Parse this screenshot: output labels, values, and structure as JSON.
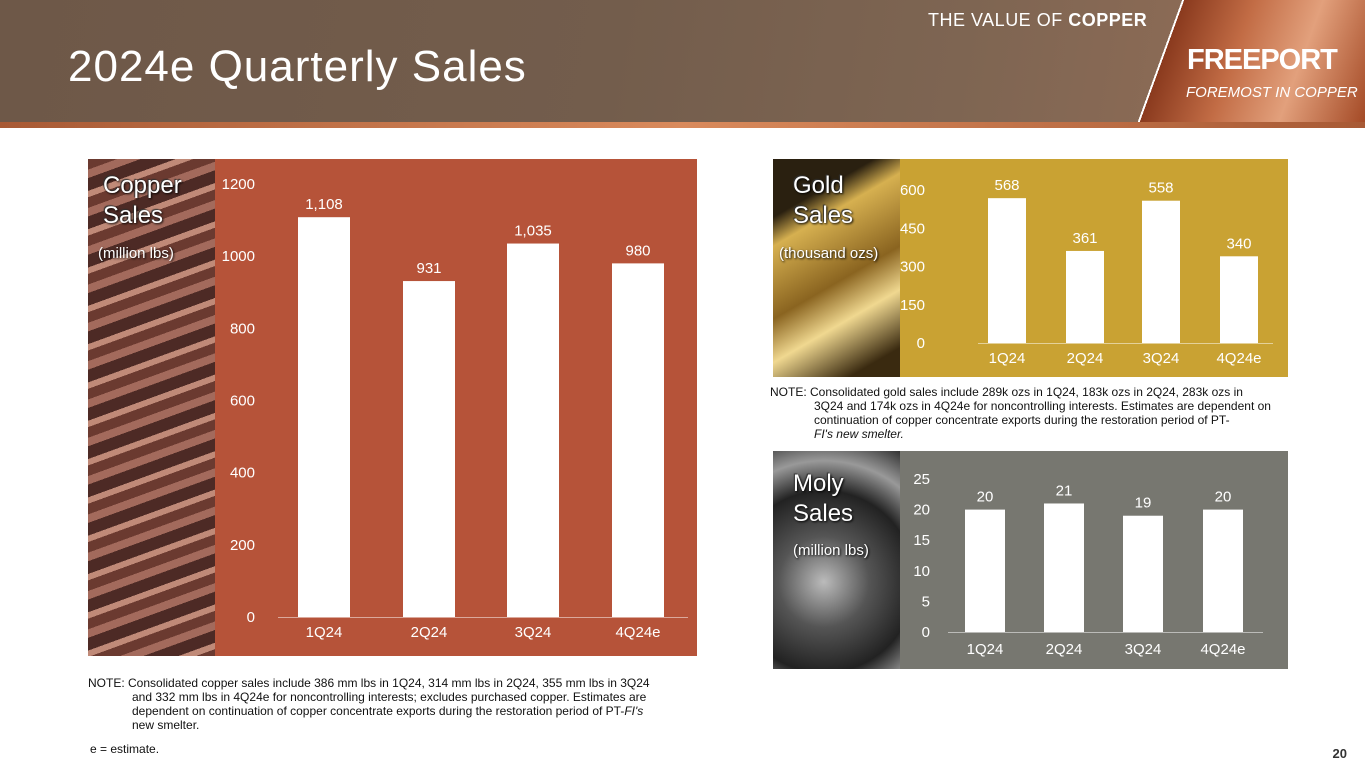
{
  "header": {
    "title": "2024e Quarterly Sales",
    "tagline_a": "THE VALUE OF ",
    "tagline_b": "COPPER",
    "brand": "FREEPORT",
    "brand_sub": "FOREMOST IN COPPER"
  },
  "colors": {
    "copper": "#b65339",
    "gold": "#c9a233",
    "moly": "#777770"
  },
  "chart_data": [
    {
      "type": "bar",
      "title": "Copper Sales",
      "unit": "(million lbs)",
      "categories": [
        "1Q24",
        "2Q24",
        "3Q24",
        "4Q24e"
      ],
      "values": [
        1108,
        931,
        1035,
        980
      ],
      "value_labels": [
        "1,108",
        "931",
        "1,035",
        "980"
      ],
      "ylim": [
        0,
        1200
      ],
      "yticks": [
        0,
        200,
        400,
        600,
        800,
        1000,
        1200
      ]
    },
    {
      "type": "bar",
      "title": "Gold Sales",
      "unit": "(thousand ozs)",
      "categories": [
        "1Q24",
        "2Q24",
        "3Q24",
        "4Q24e"
      ],
      "values": [
        568,
        361,
        558,
        340
      ],
      "value_labels": [
        "568",
        "361",
        "558",
        "340"
      ],
      "ylim": [
        0,
        600
      ],
      "yticks": [
        0,
        150,
        300,
        450,
        600
      ]
    },
    {
      "type": "bar",
      "title": "Moly Sales",
      "unit": "(million lbs)",
      "categories": [
        "1Q24",
        "2Q24",
        "3Q24",
        "4Q24e"
      ],
      "values": [
        20,
        21,
        19,
        20
      ],
      "value_labels": [
        "20",
        "21",
        "19",
        "20"
      ],
      "ylim": [
        0,
        25
      ],
      "yticks": [
        0,
        5,
        10,
        15,
        20,
        25
      ]
    }
  ],
  "panels": {
    "copper": {
      "l1": "Copper",
      "l2": "Sales"
    },
    "gold": {
      "l1": "Gold",
      "l2": "Sales"
    },
    "moly": {
      "l1": "Moly",
      "l2": "Sales"
    }
  },
  "notes": {
    "gold": {
      "first": "NOTE: Consolidated gold sales include 289k ozs in 1Q24, 183k ozs in 2Q24, 283k ozs in",
      "rest": "3Q24 and 174k ozs in 4Q24e for noncontrolling interests. Estimates are dependent on continuation of copper concentrate exports during the restoration period of PT-",
      "italic": "FI's new smelter."
    },
    "copper": {
      "first": "NOTE: Consolidated copper sales include 386 mm lbs in 1Q24, 314 mm lbs in 2Q24, 355 mm lbs in 3Q24",
      "rest": "and 332 mm lbs in 4Q24e for noncontrolling interests; excludes purchased copper. Estimates are dependent on continuation of copper concentrate exports during the restoration period of PT-",
      "italic": "FI's",
      "tail": " new smelter."
    },
    "estimate": "e = estimate."
  },
  "page_number": "20"
}
